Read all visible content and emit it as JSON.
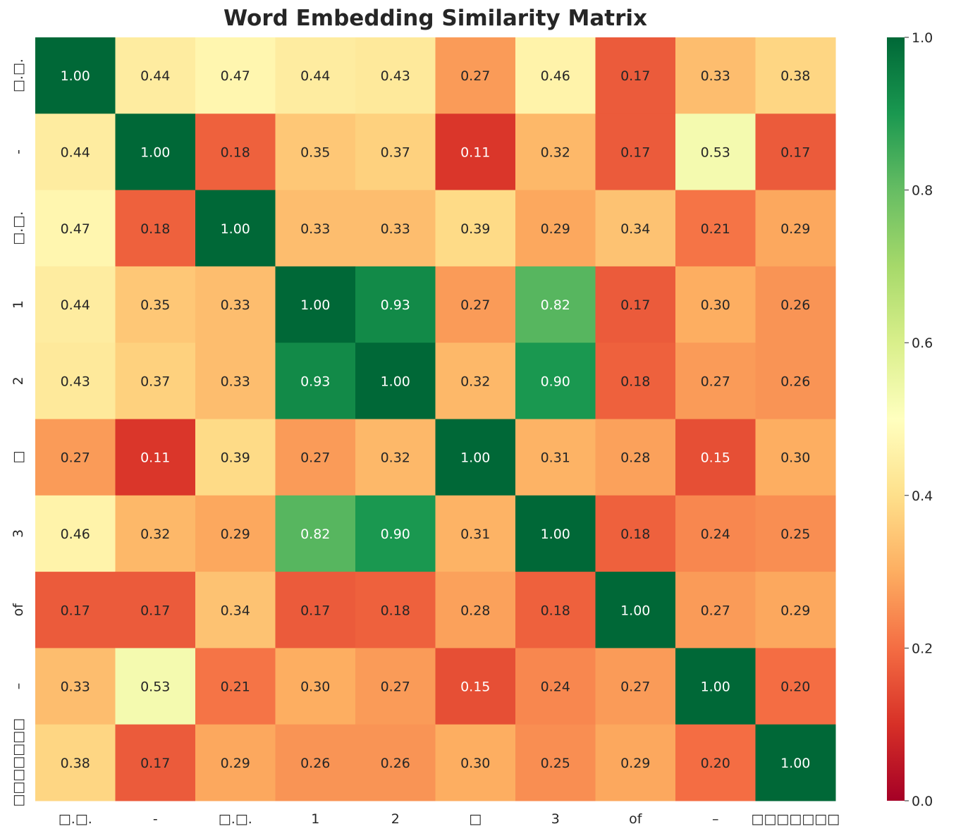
{
  "chart_data": {
    "type": "heatmap",
    "title": "Word Embedding Similarity Matrix",
    "x_labels": [
      "□.□.",
      "-",
      "□.□.",
      "1",
      "2",
      "□",
      "3",
      "of",
      "–",
      "□□□□□□□"
    ],
    "y_labels": [
      "□.□.",
      "-",
      "□.□.",
      "1",
      "2",
      "□",
      "3",
      "of",
      "–",
      "□□□□□□□"
    ],
    "values": [
      [
        1.0,
        0.44,
        0.47,
        0.44,
        0.43,
        0.27,
        0.46,
        0.17,
        0.33,
        0.38
      ],
      [
        0.44,
        1.0,
        0.18,
        0.35,
        0.37,
        0.11,
        0.32,
        0.17,
        0.53,
        0.17
      ],
      [
        0.47,
        0.18,
        1.0,
        0.33,
        0.33,
        0.39,
        0.29,
        0.34,
        0.21,
        0.29
      ],
      [
        0.44,
        0.35,
        0.33,
        1.0,
        0.93,
        0.27,
        0.82,
        0.17,
        0.3,
        0.26
      ],
      [
        0.43,
        0.37,
        0.33,
        0.93,
        1.0,
        0.32,
        0.9,
        0.18,
        0.27,
        0.26
      ],
      [
        0.27,
        0.11,
        0.39,
        0.27,
        0.32,
        1.0,
        0.31,
        0.28,
        0.15,
        0.3
      ],
      [
        0.46,
        0.32,
        0.29,
        0.82,
        0.9,
        0.31,
        1.0,
        0.18,
        0.24,
        0.25
      ],
      [
        0.17,
        0.17,
        0.34,
        0.17,
        0.18,
        0.28,
        0.18,
        1.0,
        0.27,
        0.29
      ],
      [
        0.33,
        0.53,
        0.21,
        0.3,
        0.27,
        0.15,
        0.24,
        0.27,
        1.0,
        0.2
      ],
      [
        0.38,
        0.17,
        0.29,
        0.26,
        0.26,
        0.3,
        0.25,
        0.29,
        0.2,
        1.0
      ]
    ],
    "colormap": "RdYlGn",
    "colormap_stops": [
      "#a50026",
      "#d73027",
      "#f46d43",
      "#fdae61",
      "#fee08b",
      "#ffffbf",
      "#d9ef8b",
      "#a6d96a",
      "#66bd63",
      "#1a9850",
      "#006837"
    ],
    "vmin": 0,
    "vmax": 1,
    "colorbar_ticks": [
      "0.0",
      "0.2",
      "0.4",
      "0.6",
      "0.8",
      "1.0"
    ],
    "legend": "colorbar-right"
  }
}
